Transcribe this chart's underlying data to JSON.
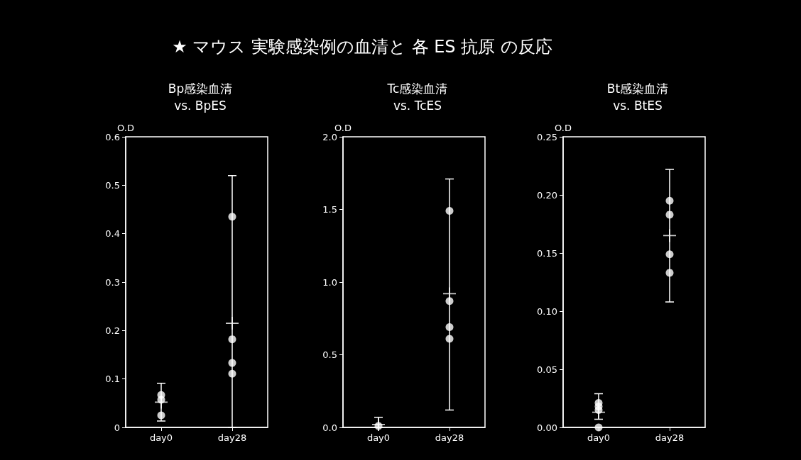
{
  "chart_data": [
    {
      "type": "other",
      "title": "★ マウス 実験感染例の血清と 各 ES 抗原 の反応"
    },
    {
      "type": "scatter",
      "title": "Bp感染血清\nvs. BpES",
      "ylabel": "O.D",
      "categories": [
        "day0",
        "day28"
      ],
      "ylim": [
        0,
        0.6
      ],
      "yticks": [
        0,
        0.1,
        0.2,
        0.3,
        0.4,
        0.5,
        0.6
      ],
      "marker": "circle",
      "series": [
        {
          "color": "#ffffff",
          "x": [
            "day0",
            "day0",
            "day0",
            "day28",
            "day28",
            "day28",
            "day28"
          ],
          "values": [
            0.067,
            0.057,
            0.025,
            0.435,
            0.182,
            0.133,
            0.111
          ]
        },
        {
          "color": "#ffffff",
          "marker": "cross",
          "x": [
            "day0",
            "day28"
          ],
          "values": [
            0.052,
            0.215
          ],
          "errors": [
            [
              0.013,
              0.091
            ],
            [
              0,
              0.52
            ]
          ]
        }
      ]
    },
    {
      "type": "scatter",
      "title": "Tc感染血清\nvs. TcES",
      "ylabel": "O.D",
      "categories": [
        "day0",
        "day28"
      ],
      "ylim": [
        0,
        2.0
      ],
      "yticks": [
        {
          "value": 0,
          "label": "0.0"
        },
        {
          "value": 0.5,
          "label": "0.5"
        },
        {
          "value": 1,
          "label": "1.0"
        },
        {
          "value": 1.5,
          "label": "1.5"
        },
        {
          "value": 2,
          "label": "2.0"
        }
      ],
      "marker": "circle",
      "series": [
        {
          "color": "#ffffff",
          "x": [
            "day0",
            "day0",
            "day28",
            "day28",
            "day28",
            "day28"
          ],
          "values": [
            null,
            0.01,
            1.49,
            0.87,
            0.69,
            0.61
          ]
        },
        {
          "color": "#ffffff",
          "marker": "cross",
          "x": [
            "day0",
            "day28"
          ],
          "values": [
            0.02,
            0.92
          ],
          "errors": [
            [
              0,
              0.07
            ],
            [
              0.12,
              1.71
            ]
          ]
        }
      ]
    },
    {
      "type": "scatter",
      "title": "Bt感染血清\nvs. BtES",
      "ylabel": "O.D",
      "categories": [
        "day0",
        "day28"
      ],
      "ylim": [
        0,
        0.25
      ],
      "yticks": [
        {
          "value": 0,
          "label": "0.00"
        },
        {
          "value": 0.05,
          "label": "0.05"
        },
        {
          "value": 0.1,
          "label": "0.10"
        },
        {
          "value": 0.15,
          "label": "0.15"
        },
        {
          "value": 0.2,
          "label": "0.20"
        },
        {
          "value": 0.25,
          "label": "0.25"
        }
      ],
      "marker": "circle",
      "series": [
        {
          "color": "#ffffff",
          "x": [
            "day0",
            "day0",
            "day0",
            "day0",
            "day28",
            "day28",
            "day28",
            "day28"
          ],
          "values": [
            0.021,
            0.018,
            0.015,
            0.0,
            0.195,
            0.183,
            0.149,
            0.133
          ]
        },
        {
          "color": "#ffffff",
          "marker": "cross",
          "x": [
            "day0",
            "day28"
          ],
          "values": [
            0.013,
            0.165
          ],
          "errors": [
            [
              0.007,
              0.029
            ],
            [
              0.108,
              0.222
            ]
          ]
        }
      ]
    }
  ]
}
